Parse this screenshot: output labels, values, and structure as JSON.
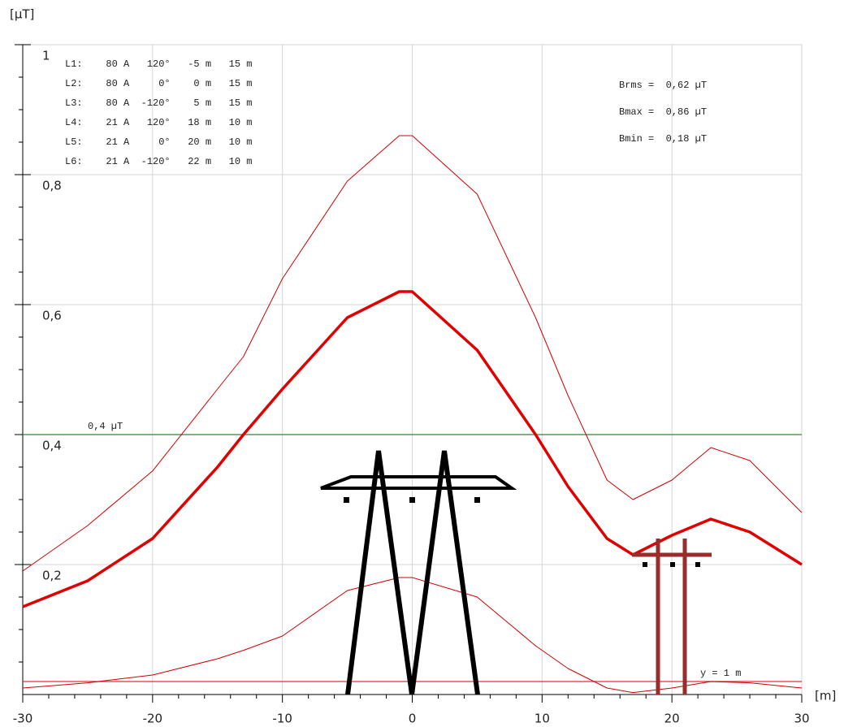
{
  "chart_data": {
    "type": "line",
    "y_label": "[µT]",
    "x_label": "[m]",
    "x": [
      -30,
      -25,
      -20,
      -15,
      -13,
      -10,
      -5,
      -1,
      0,
      5,
      9.5,
      12,
      15,
      17,
      20,
      23,
      26,
      30
    ],
    "series": [
      {
        "color": "#e00000",
        "width": 3.5,
        "values": [
          0.135,
          0.175,
          0.24,
          0.35,
          0.4,
          0.47,
          0.58,
          0.62,
          0.62,
          0.53,
          0.4,
          0.32,
          0.24,
          0.215,
          0.245,
          0.27,
          0.25,
          0.2
        ]
      },
      {
        "color": "#d00000",
        "width": 1,
        "values": [
          0.19,
          0.26,
          0.344,
          0.47,
          0.52,
          0.64,
          0.79,
          0.86,
          0.86,
          0.77,
          0.58,
          0.46,
          0.33,
          0.3,
          0.33,
          0.38,
          0.36,
          0.28
        ]
      },
      {
        "color": "#d00000",
        "width": 1,
        "values": [
          0.01,
          0.018,
          0.03,
          0.055,
          0.068,
          0.09,
          0.16,
          0.18,
          0.18,
          0.15,
          0.075,
          0.04,
          0.01,
          0.003,
          0.01,
          0.02,
          0.018,
          0.01
        ]
      }
    ],
    "reference_lines": [
      {
        "value": 0.4,
        "label": "0,4 µT",
        "color": "#2a8a2a"
      },
      {
        "value": 0.02,
        "label": "y = 1 m",
        "color": "#d33"
      }
    ],
    "conductors": [
      "L1:    80 A   120°   -5 m   15 m",
      "L2:    80 A     0°    0 m   15 m",
      "L3:    80 A  -120°    5 m   15 m",
      "L4:    21 A   120°   18 m   10 m",
      "L5:    21 A     0°   20 m   10 m",
      "L6:    21 A  -120°   22 m   10 m"
    ],
    "statistics": [
      "Brms =  0,62 µT",
      "Bmax =  0,86 µT",
      "Bmin =  0,18 µT"
    ],
    "xlim": [
      -30,
      30
    ],
    "ylim": [
      0,
      1
    ],
    "xticks": [
      -30,
      -20,
      -10,
      0,
      10,
      20,
      30
    ],
    "yticks": [
      {
        "value": 0.2,
        "label": "0,2"
      },
      {
        "value": 0.4,
        "label": "0,4"
      },
      {
        "value": 0.6,
        "label": "0,6"
      },
      {
        "value": 0.8,
        "label": "0,8"
      },
      1
    ],
    "grid": true
  }
}
